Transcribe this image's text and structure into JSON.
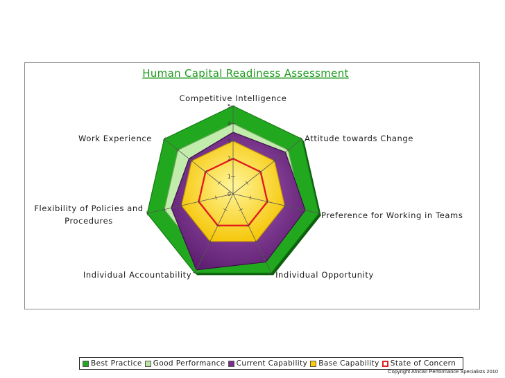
{
  "copyright": "Copyright African Performance Specialists 2010",
  "chart_data": {
    "type": "radar",
    "title": "Human Capital Readiness Assessment",
    "axes": [
      "Competitive Intelligence",
      "Attitude towards Change",
      "Preference for Working in Teams",
      "Individual Opportunity",
      "Individual Accountability",
      "Flexibility of Policies and Procedures",
      "Work Experience"
    ],
    "radial_ticks": [
      "0",
      "1",
      "2",
      "3",
      "4",
      "5"
    ],
    "rmax": 5,
    "series": [
      {
        "name": "Best Practice",
        "color": "#22a81e",
        "filled": true,
        "values": [
          5,
          5,
          5,
          5,
          5,
          5,
          5
        ]
      },
      {
        "name": "Good Performance",
        "color": "#b8e6a0",
        "filled": true,
        "values": [
          4,
          4,
          4,
          4,
          4,
          4,
          4
        ]
      },
      {
        "name": "Current Capability",
        "color": "#7a2f8c",
        "filled": true,
        "values": [
          3.5,
          3.8,
          4.2,
          4.3,
          4.8,
          3.6,
          3.2
        ]
      },
      {
        "name": "Base Capability",
        "color": "#ffcc00",
        "filled": true,
        "values": [
          3,
          3,
          3,
          3,
          3,
          3,
          3
        ]
      },
      {
        "name": "State of Concern",
        "color": "#e02020",
        "filled": false,
        "values": [
          2,
          2,
          2,
          2,
          2,
          2,
          2
        ]
      }
    ],
    "legend_position": "bottom"
  }
}
